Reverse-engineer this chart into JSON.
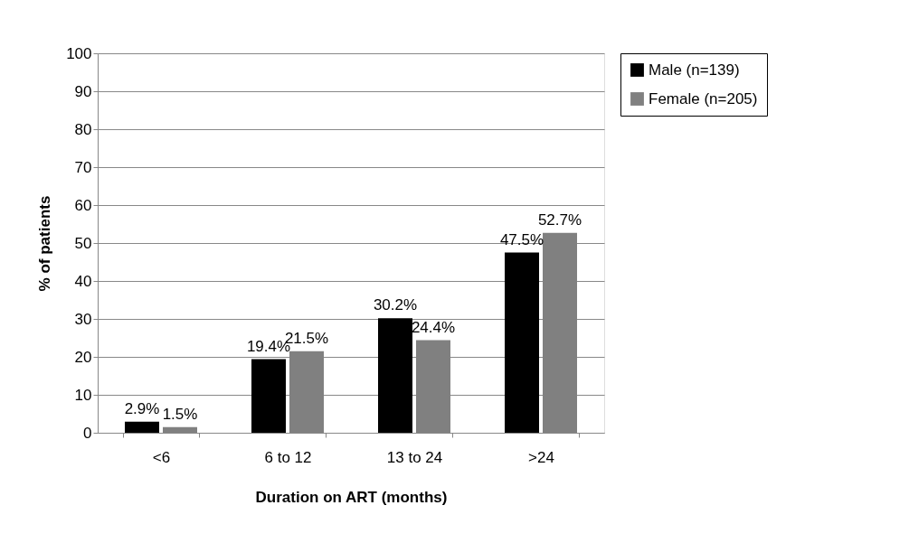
{
  "chart_data": {
    "type": "bar",
    "xlabel": "Duration on ART (months)",
    "ylabel": "% of patients",
    "categories": [
      "<6",
      "6 to 12",
      "13 to 24",
      ">24"
    ],
    "series": [
      {
        "name": "Male (n=139)",
        "color": "#000000",
        "values": [
          2.9,
          19.4,
          30.2,
          47.5
        ],
        "value_labels": [
          "2.9%",
          "19.4%",
          "30.2%",
          "47.5%"
        ]
      },
      {
        "name": "Female (n=205)",
        "color": "#808080",
        "values": [
          1.5,
          21.5,
          24.4,
          52.7
        ],
        "value_labels": [
          "1.5%",
          "21.5%",
          "24.4%",
          "52.7%"
        ]
      }
    ],
    "ylim": [
      0,
      100
    ],
    "yticks": [
      0,
      10,
      20,
      30,
      40,
      50,
      60,
      70,
      80,
      90,
      100
    ],
    "grid": "y",
    "legend": "right"
  }
}
